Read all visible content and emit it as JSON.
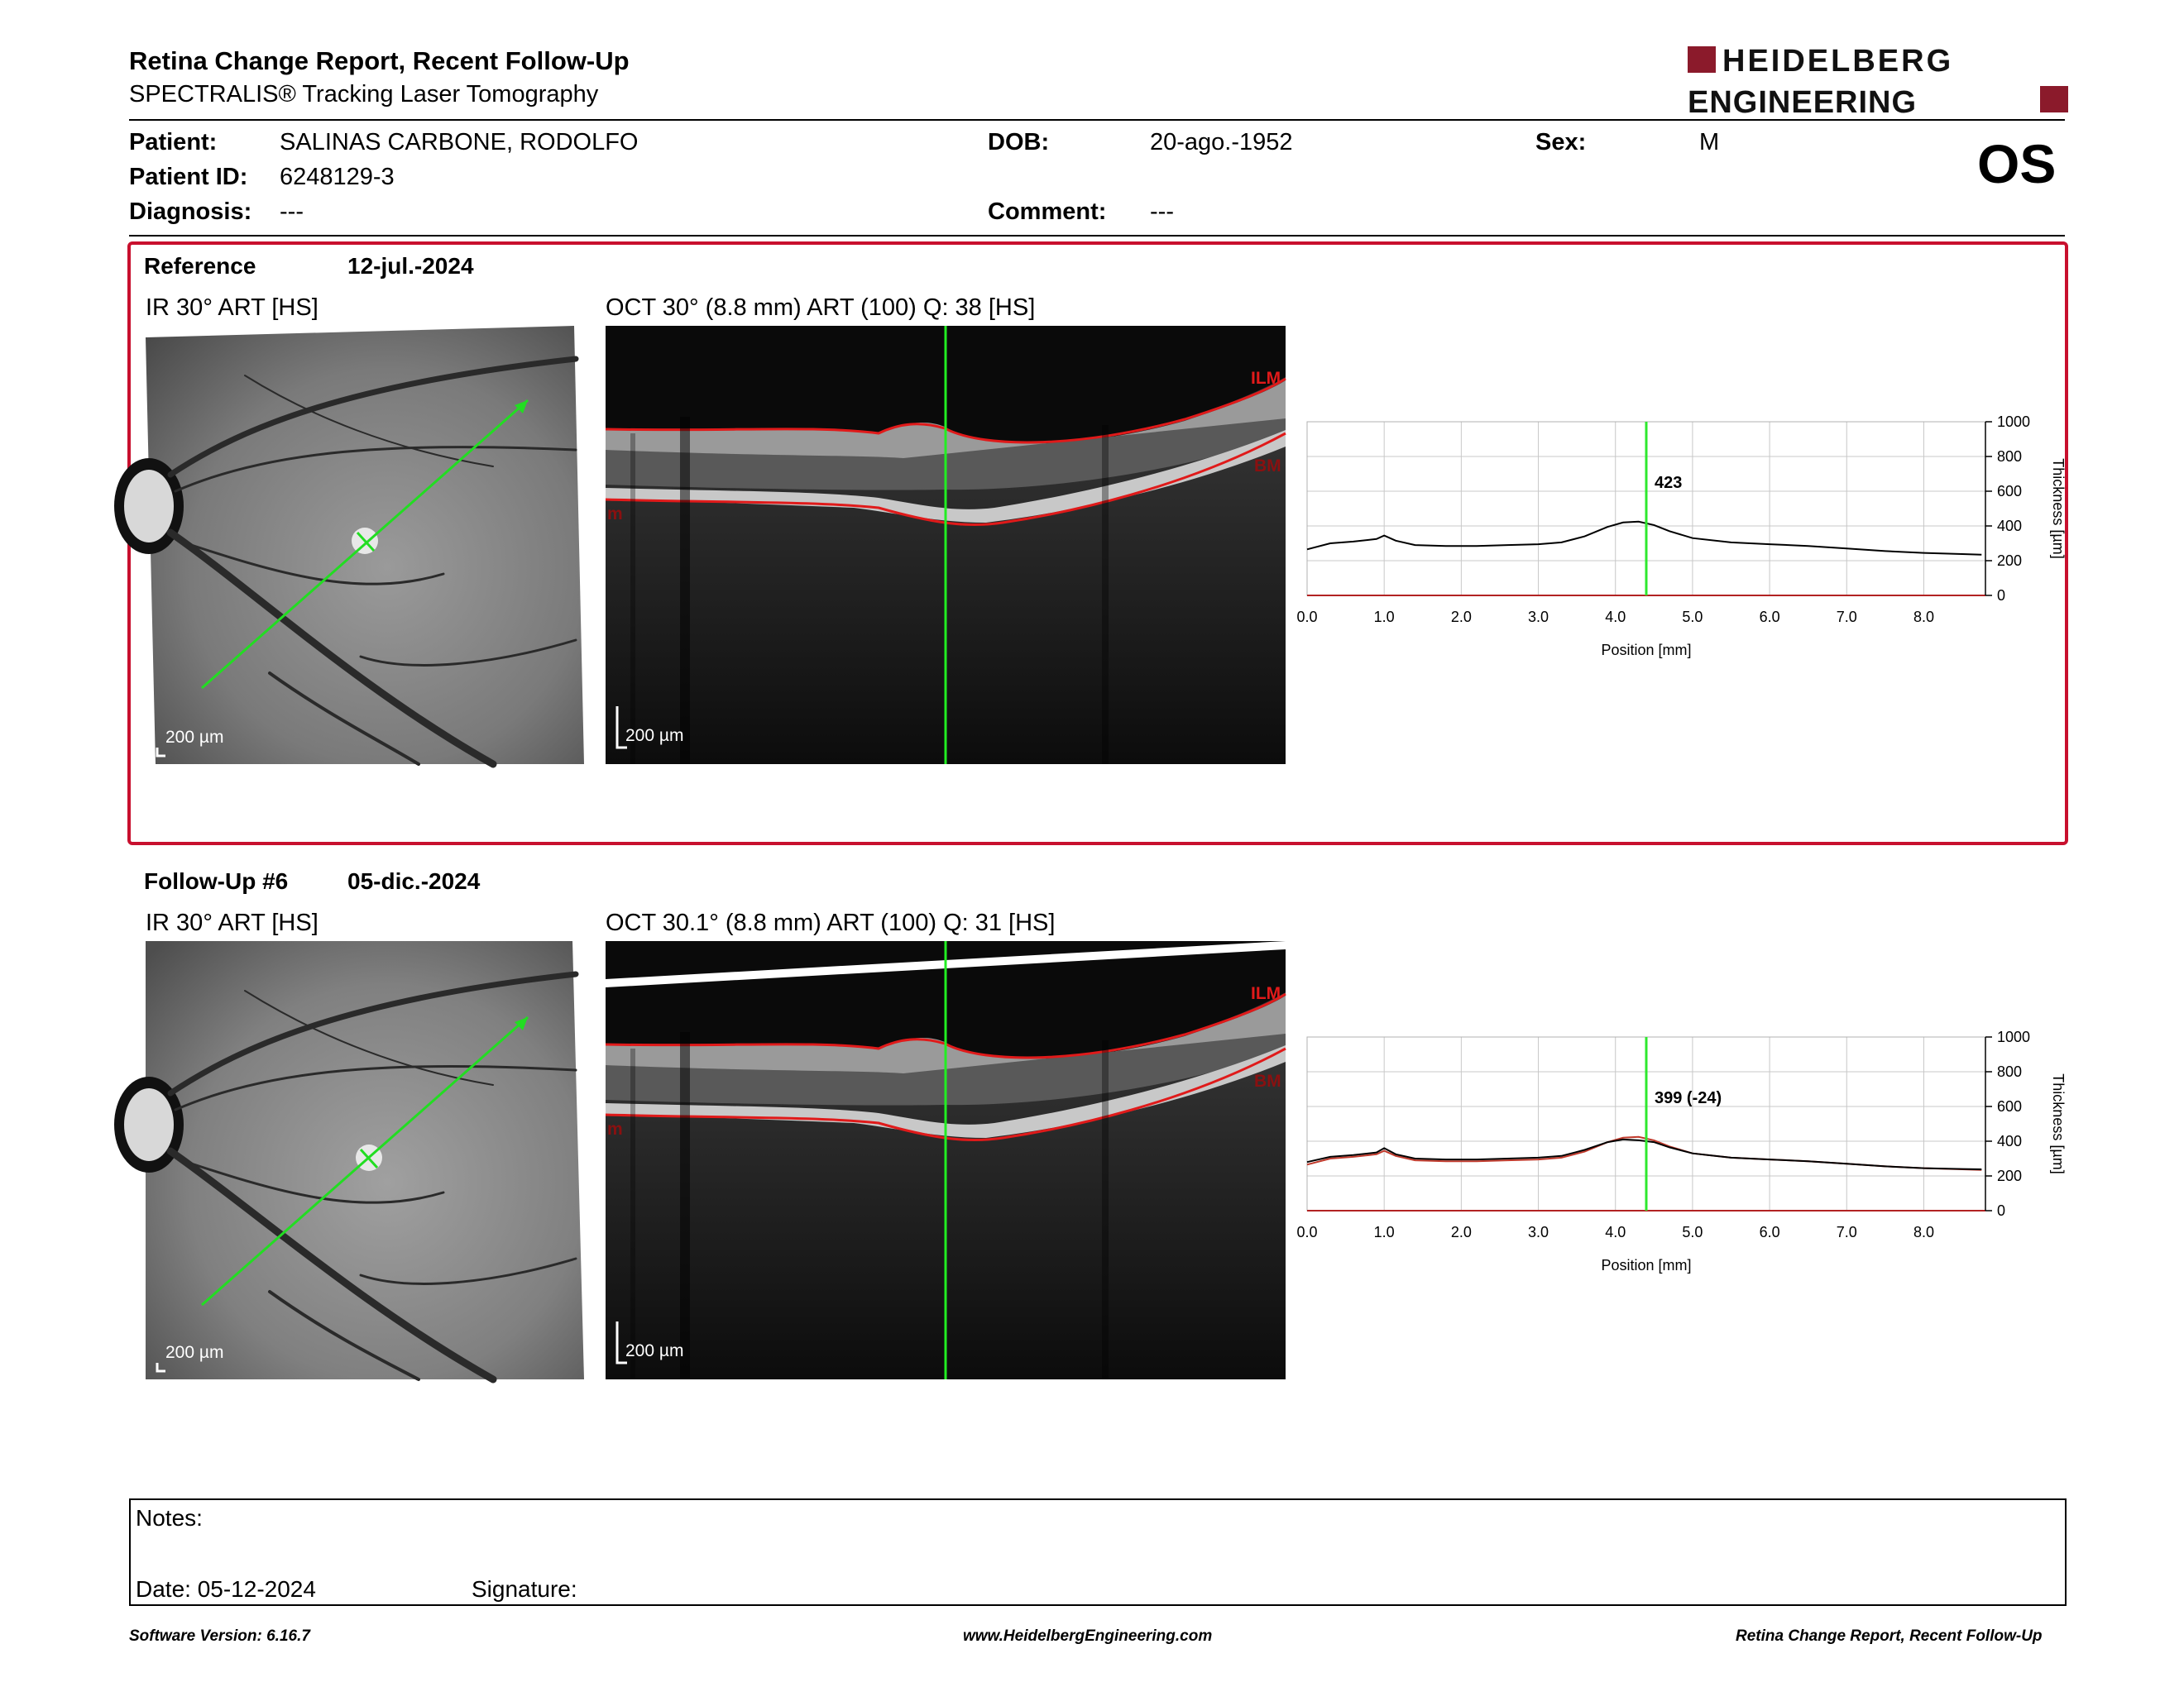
{
  "header": {
    "title": "Retina Change Report, Recent Follow-Up",
    "subtitle": "SPECTRALIS® Tracking Laser Tomography",
    "brand_line1": "HEIDELBERG",
    "brand_line2": "ENGINEERING",
    "brand_color": "#8b1a2b"
  },
  "patient": {
    "patient_label": "Patient:",
    "patient_name": "SALINAS CARBONE, RODOLFO",
    "id_label": "Patient ID:",
    "id": "6248129-3",
    "diagnosis_label": "Diagnosis:",
    "diagnosis": "---",
    "dob_label": "DOB:",
    "dob": "20-ago.-1952",
    "comment_label": "Comment:",
    "comment": "---",
    "sex_label": "Sex:",
    "sex": "M",
    "eye": "OS"
  },
  "reference": {
    "label": "Reference",
    "date": "12-jul.-2024",
    "ir_title": "IR 30° ART [HS]",
    "oct_title": "OCT 30° (8.8 mm) ART (100) Q: 38 [HS]",
    "ir_scale": "200 µm",
    "oct_scale": "200 µm",
    "ilm_label": "ILM",
    "bm_label": "BM",
    "edge_label": "m",
    "box_color": "#c8102e"
  },
  "followup": {
    "label": "Follow-Up #6",
    "date": "05-dic.-2024",
    "ir_title": "IR 30° ART [HS]",
    "oct_title": "OCT 30.1° (8.8 mm) ART (100) Q: 31 [HS]",
    "ir_scale": "200 µm",
    "oct_scale": "200 µm",
    "ilm_label": "ILM",
    "bm_label": "BM",
    "edge_label": "m"
  },
  "chart_data": [
    {
      "type": "line",
      "xlabel": "Position [mm]",
      "ylabel": "Thickness [µm]",
      "xlim": [
        0,
        8.8
      ],
      "ylim": [
        0,
        1000
      ],
      "x_ticks": [
        "0.0",
        "1.0",
        "2.0",
        "3.0",
        "4.0",
        "5.0",
        "6.0",
        "7.0",
        "8.0"
      ],
      "y_ticks": [
        "0",
        "200",
        "400",
        "600",
        "800",
        "1000"
      ],
      "grid": true,
      "marker_x": 4.4,
      "marker_label": "423",
      "marker_color": "#2ee82e",
      "series": [
        {
          "color": "#000000",
          "x": [
            0,
            0.3,
            0.6,
            0.9,
            1.0,
            1.15,
            1.4,
            1.8,
            2.2,
            2.6,
            3.0,
            3.3,
            3.6,
            3.9,
            4.1,
            4.3,
            4.5,
            4.7,
            5.0,
            5.5,
            6.0,
            6.5,
            7.0,
            7.5,
            8.0,
            8.5,
            8.75
          ],
          "y": [
            265,
            300,
            310,
            325,
            345,
            315,
            290,
            285,
            285,
            290,
            295,
            305,
            340,
            395,
            420,
            425,
            405,
            370,
            330,
            305,
            295,
            285,
            270,
            255,
            245,
            238,
            235
          ]
        }
      ]
    },
    {
      "type": "line",
      "xlabel": "Position [mm]",
      "ylabel": "Thickness [µm]",
      "xlim": [
        0,
        8.8
      ],
      "ylim": [
        0,
        1000
      ],
      "x_ticks": [
        "0.0",
        "1.0",
        "2.0",
        "3.0",
        "4.0",
        "5.0",
        "6.0",
        "7.0",
        "8.0"
      ],
      "y_ticks": [
        "0",
        "200",
        "400",
        "600",
        "800",
        "1000"
      ],
      "grid": true,
      "marker_x": 4.4,
      "marker_label": "399 (-24)",
      "marker_color": "#2ee82e",
      "series": [
        {
          "color": "#000000",
          "x": [
            0,
            0.3,
            0.6,
            0.9,
            1.0,
            1.15,
            1.4,
            1.8,
            2.2,
            2.6,
            3.0,
            3.3,
            3.6,
            3.9,
            4.1,
            4.3,
            4.5,
            4.7,
            5.0,
            5.5,
            6.0,
            6.5,
            7.0,
            7.5,
            8.0,
            8.5,
            8.75
          ],
          "y": [
            280,
            310,
            320,
            335,
            360,
            325,
            300,
            295,
            295,
            300,
            305,
            315,
            350,
            395,
            410,
            405,
            395,
            365,
            330,
            305,
            295,
            285,
            270,
            255,
            245,
            240,
            238
          ]
        },
        {
          "color": "#c0392b",
          "x": [
            0,
            0.3,
            0.6,
            0.9,
            1.0,
            1.15,
            1.4,
            1.8,
            2.2,
            2.6,
            3.0,
            3.3,
            3.6,
            3.9,
            4.1,
            4.3,
            4.5,
            4.7,
            5.0,
            5.5,
            6.0,
            6.5,
            7.0,
            7.5,
            8.0,
            8.5,
            8.75
          ],
          "y": [
            265,
            300,
            310,
            325,
            345,
            315,
            290,
            285,
            285,
            290,
            295,
            305,
            340,
            395,
            420,
            425,
            405,
            370,
            330,
            305,
            295,
            285,
            270,
            255,
            245,
            238,
            235
          ]
        }
      ]
    }
  ],
  "footer": {
    "notes_label": "Notes:",
    "date_label": "Date: 05-12-2024",
    "signature_label": "Signature:",
    "software": "Software Version: 6.16.7",
    "website": "www.HeidelbergEngineering.com",
    "report_name": "Retina Change Report, Recent Follow-Up"
  }
}
